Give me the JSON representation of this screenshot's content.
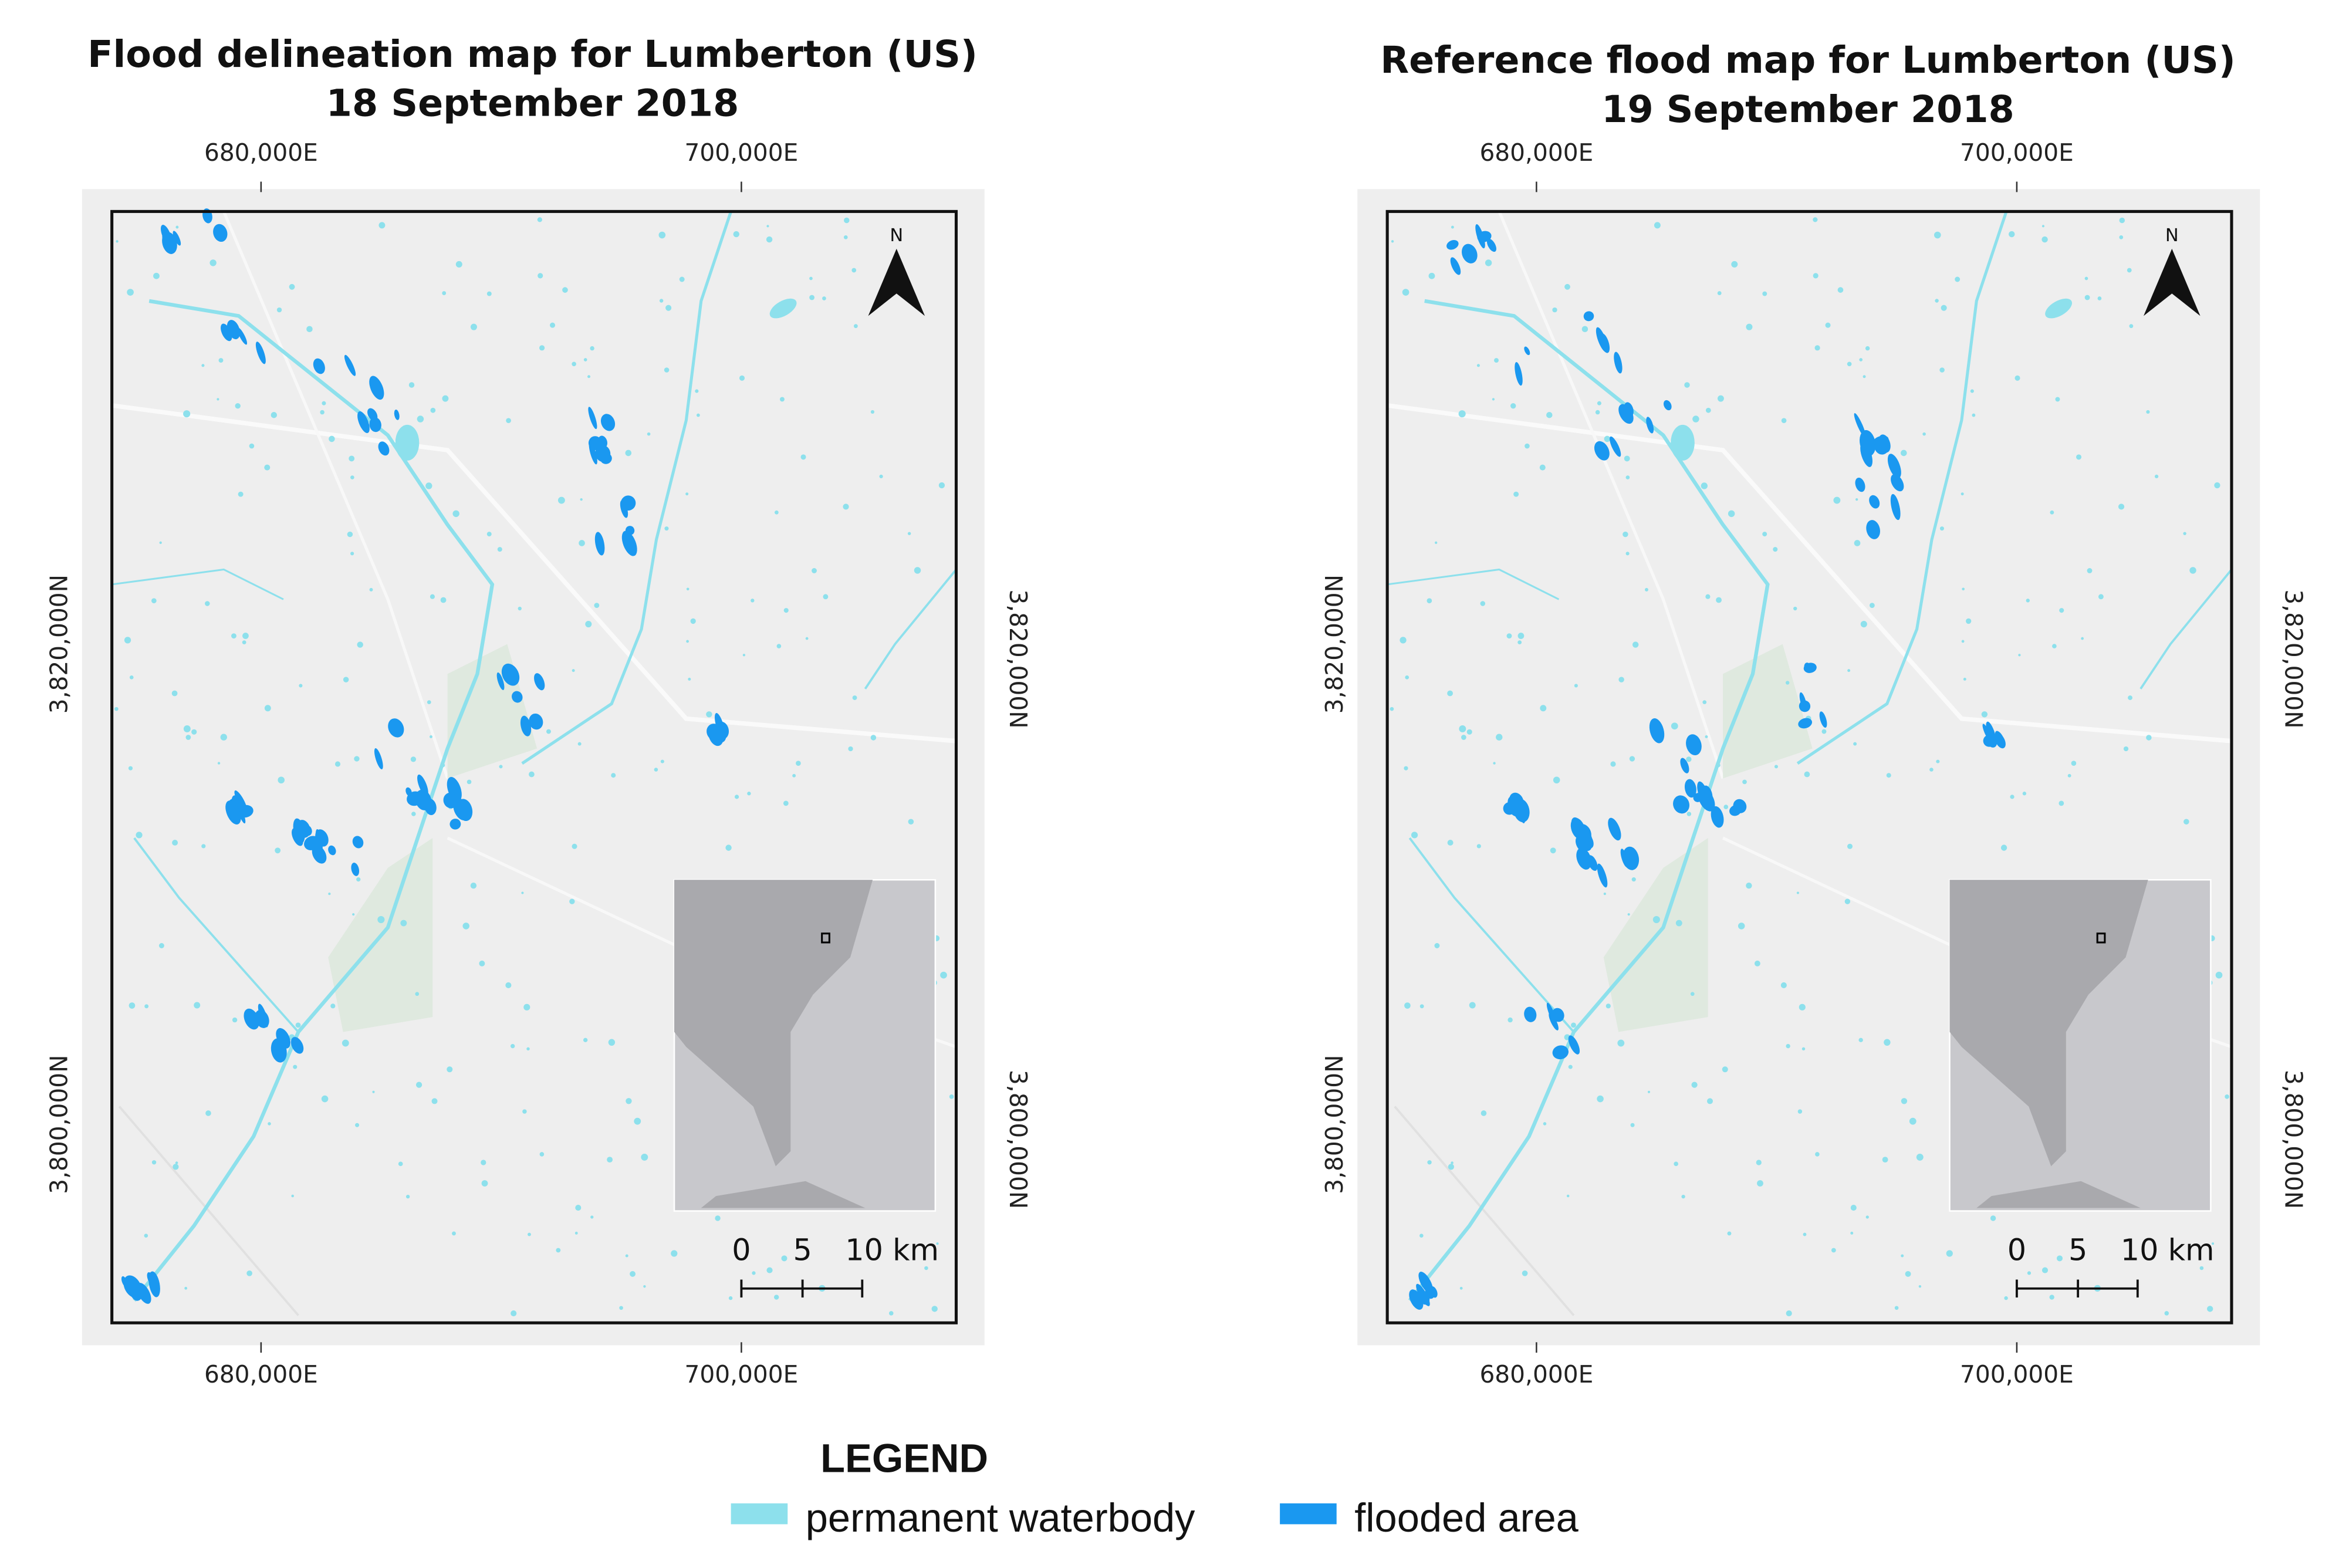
{
  "maps": [
    {
      "title": [
        "Flood delineation map for Lumberton (US)",
        "18 September 2018"
      ],
      "x_labels": [
        "680,000E",
        "700,000E"
      ],
      "y_labels": [
        "3,820,000N",
        "3,800,000N"
      ],
      "north": "N",
      "scale_labels": [
        "0",
        "5",
        "10 km"
      ]
    },
    {
      "title": [
        "Reference flood map for Lumberton (US)",
        "19 September 2018"
      ],
      "x_labels": [
        "680,000E",
        "700,000E"
      ],
      "y_labels": [
        "3,820,000N",
        "3,800,000N"
      ],
      "north": "N",
      "scale_labels": [
        "0",
        "5",
        "10 km"
      ]
    }
  ],
  "legend": {
    "title": "LEGEND",
    "items": [
      "permanent waterbody",
      "flooded area"
    ]
  }
}
